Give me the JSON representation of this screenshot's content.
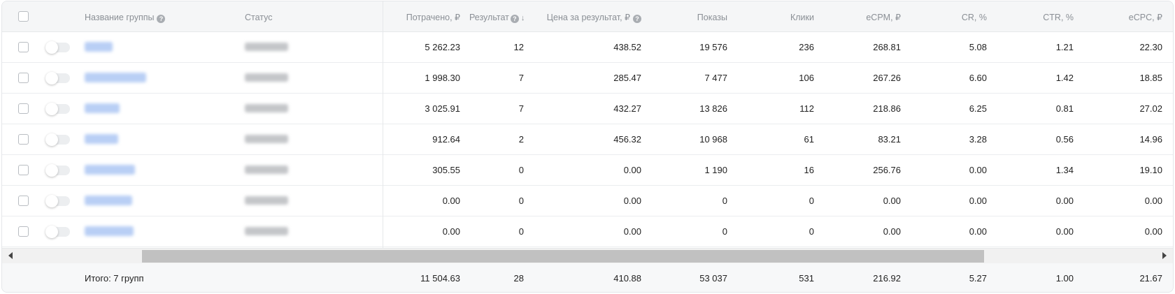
{
  "table": {
    "headers": {
      "name": "Название группы",
      "status": "Статус",
      "spent": "Потрачено, ₽",
      "result": "Результат",
      "cost_per_result": "Цена за результат, ₽",
      "impressions": "Показы",
      "clicks": "Клики",
      "ecpm": "eCPM, ₽",
      "cr": "CR, %",
      "ctr": "CTR, %",
      "ecpc": "eCPC, ₽"
    },
    "help_glyph": "?",
    "sort_glyph": "↓",
    "rows": [
      {
        "spent": "5 262.23",
        "result": "12",
        "cost_per_result": "438.52",
        "impressions": "19 576",
        "clicks": "236",
        "ecpm": "268.81",
        "cr": "5.08",
        "ctr": "1.21",
        "ecpc": "22.30"
      },
      {
        "spent": "1 998.30",
        "result": "7",
        "cost_per_result": "285.47",
        "impressions": "7 477",
        "clicks": "106",
        "ecpm": "267.26",
        "cr": "6.60",
        "ctr": "1.42",
        "ecpc": "18.85"
      },
      {
        "spent": "3 025.91",
        "result": "7",
        "cost_per_result": "432.27",
        "impressions": "13 826",
        "clicks": "112",
        "ecpm": "218.86",
        "cr": "6.25",
        "ctr": "0.81",
        "ecpc": "27.02"
      },
      {
        "spent": "912.64",
        "result": "2",
        "cost_per_result": "456.32",
        "impressions": "10 968",
        "clicks": "61",
        "ecpm": "83.21",
        "cr": "3.28",
        "ctr": "0.56",
        "ecpc": "14.96"
      },
      {
        "spent": "305.55",
        "result": "0",
        "cost_per_result": "0.00",
        "impressions": "1 190",
        "clicks": "16",
        "ecpm": "256.76",
        "cr": "0.00",
        "ctr": "1.34",
        "ecpc": "19.10"
      },
      {
        "spent": "0.00",
        "result": "0",
        "cost_per_result": "0.00",
        "impressions": "0",
        "clicks": "0",
        "ecpm": "0.00",
        "cr": "0.00",
        "ctr": "0.00",
        "ecpc": "0.00"
      },
      {
        "spent": "0.00",
        "result": "0",
        "cost_per_result": "0.00",
        "impressions": "0",
        "clicks": "0",
        "ecpm": "0.00",
        "cr": "0.00",
        "ctr": "0.00",
        "ecpc": "0.00"
      }
    ],
    "totals": {
      "label": "Итого: 7 групп",
      "spent": "11 504.63",
      "result": "28",
      "cost_per_result": "410.88",
      "impressions": "53 037",
      "clicks": "531",
      "ecpm": "216.92",
      "cr": "5.27",
      "ctr": "1.00",
      "ecpc": "21.67"
    }
  },
  "colors": {
    "link_blurred": "#b9cff5",
    "status_blurred": "#c4c6c9",
    "header_bg": "#f5f6f7"
  }
}
